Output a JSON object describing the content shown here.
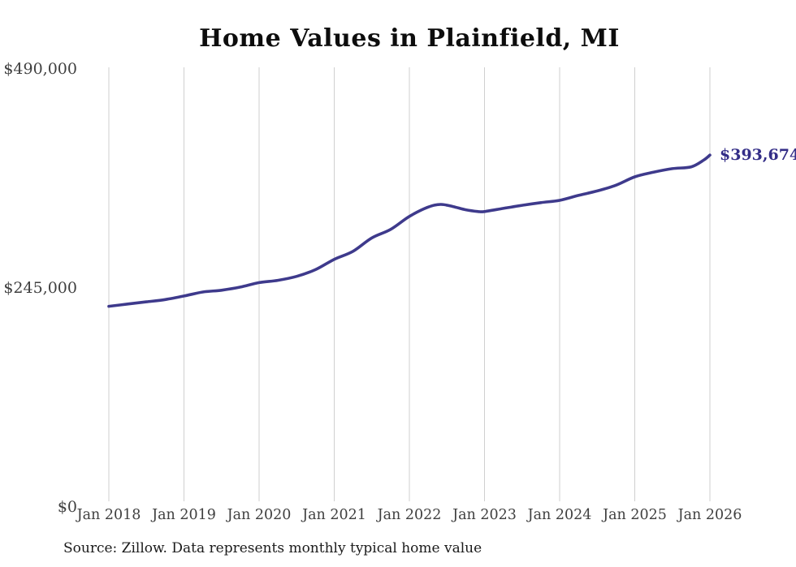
{
  "chart": {
    "title": "Home Values in Plainfield, MI",
    "source": "Source: Zillow. Data represents monthly typical home value",
    "end_label": "$393,674",
    "colors": {
      "line": "#3e3a8c",
      "end_label_text": "#332d87",
      "gridline": "#cfcfcf",
      "axis_text": "#3f3f3f",
      "title_text": "#0d0d0d",
      "source_text": "#1a1a1a",
      "background": "#ffffff"
    }
  },
  "chart_data": {
    "type": "line",
    "title": "Home Values in Plainfield, MI",
    "xlabel": "",
    "ylabel": "",
    "ylim": [
      0,
      490000
    ],
    "grid": "vertical-yearly",
    "legend": "none",
    "x_tick_labels": [
      "Jan 2018",
      "Jan 2019",
      "Jan 2020",
      "Jan 2021",
      "Jan 2022",
      "Jan 2023",
      "Jan 2024",
      "Jan 2025",
      "Jan 2026"
    ],
    "y_ticks": [
      {
        "label": "$0",
        "value": 0
      },
      {
        "label": "$245,000",
        "value": 245000
      },
      {
        "label": "$490,000",
        "value": 490000
      }
    ],
    "series": [
      {
        "name": "Monthly typical home value",
        "points": [
          [
            "2018-01",
            224500
          ],
          [
            "2018-04",
            227000
          ],
          [
            "2018-07",
            229500
          ],
          [
            "2018-10",
            232000
          ],
          [
            "2019-01",
            236000
          ],
          [
            "2019-04",
            240500
          ],
          [
            "2019-07",
            242500
          ],
          [
            "2019-10",
            246000
          ],
          [
            "2020-01",
            251000
          ],
          [
            "2020-04",
            253500
          ],
          [
            "2020-07",
            258000
          ],
          [
            "2020-10",
            265500
          ],
          [
            "2021-01",
            277000
          ],
          [
            "2021-04",
            286000
          ],
          [
            "2021-07",
            301000
          ],
          [
            "2021-10",
            310500
          ],
          [
            "2022-01",
            325000
          ],
          [
            "2022-04",
            335500
          ],
          [
            "2022-06",
            338500
          ],
          [
            "2022-08",
            336000
          ],
          [
            "2022-10",
            332500
          ],
          [
            "2022-12",
            330500
          ],
          [
            "2023-01",
            330500
          ],
          [
            "2023-04",
            334000
          ],
          [
            "2023-07",
            337500
          ],
          [
            "2023-10",
            340500
          ],
          [
            "2024-01",
            343000
          ],
          [
            "2024-04",
            348500
          ],
          [
            "2024-07",
            353500
          ],
          [
            "2024-10",
            360000
          ],
          [
            "2025-01",
            369300
          ],
          [
            "2025-04",
            374500
          ],
          [
            "2025-07",
            378500
          ],
          [
            "2025-10",
            380500
          ],
          [
            "2025-12",
            388000
          ],
          [
            "2026-01",
            393674
          ]
        ]
      }
    ],
    "annotation": {
      "text": "$393,674",
      "month": "2026-01",
      "value": 393674
    }
  }
}
